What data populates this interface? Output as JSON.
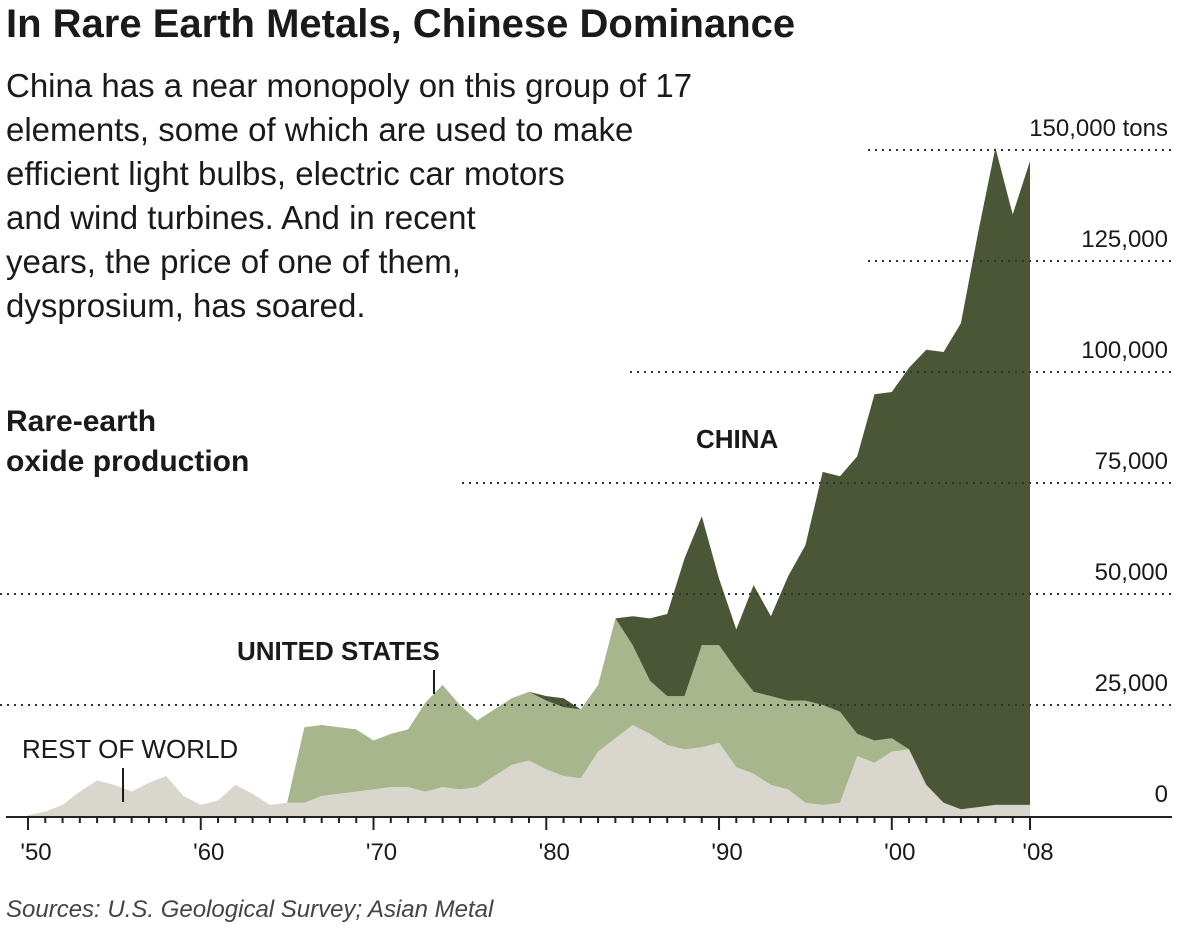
{
  "title": "In Rare Earth Metals, Chinese Dominance",
  "description_lines": [
    "China has a near monopoly on this group of 17",
    "elements, some of which are used to make",
    "efficient light bulbs, electric car motors",
    "and wind turbines. And in recent",
    "years, the price of one of them,",
    "dysprosium, has soared."
  ],
  "subtitle_lines": [
    "Rare-earth",
    "oxide production"
  ],
  "source": "Sources: U.S. Geological Survey; Asian Metal",
  "colors": {
    "china": "#4b5637",
    "united_states": "#a8b68d",
    "rest_of_world": "#d9d7cd"
  },
  "chart_data": {
    "type": "area",
    "stacked": true,
    "x": [
      1950,
      1951,
      1952,
      1953,
      1954,
      1955,
      1956,
      1957,
      1958,
      1959,
      1960,
      1961,
      1962,
      1963,
      1964,
      1965,
      1966,
      1967,
      1968,
      1969,
      1970,
      1971,
      1972,
      1973,
      1974,
      1975,
      1976,
      1977,
      1978,
      1979,
      1980,
      1981,
      1982,
      1983,
      1984,
      1985,
      1986,
      1987,
      1988,
      1989,
      1990,
      1991,
      1992,
      1993,
      1994,
      1995,
      1996,
      1997,
      1998,
      1999,
      2000,
      2001,
      2002,
      2003,
      2004,
      2005,
      2006,
      2007,
      2008
    ],
    "series": [
      {
        "name": "REST OF WORLD",
        "values": [
          200,
          1000,
          2500,
          5500,
          8000,
          7000,
          5500,
          7500,
          9000,
          4500,
          2500,
          3500,
          7000,
          5000,
          2500,
          3000,
          3000,
          4500,
          5000,
          5500,
          6000,
          6500,
          6500,
          5500,
          6500,
          6000,
          6500,
          9000,
          11500,
          12500,
          10500,
          9000,
          8500,
          14500,
          17500,
          20500,
          18500,
          16000,
          15000,
          15500,
          16500,
          11000,
          9500,
          7000,
          6000,
          3000,
          2500,
          3000,
          13500,
          12000,
          14500,
          15000,
          7000,
          3000,
          1500,
          2000,
          2500,
          2500,
          2500
        ]
      },
      {
        "name": "UNITED STATES",
        "values": [
          0,
          0,
          0,
          0,
          0,
          0,
          0,
          0,
          0,
          0,
          0,
          0,
          0,
          0,
          0,
          0,
          17000,
          16000,
          15000,
          14000,
          11000,
          12000,
          13000,
          20000,
          23000,
          19000,
          15000,
          15000,
          15000,
          15500,
          15500,
          15500,
          15500,
          15000,
          27000,
          18000,
          12000,
          11000,
          12000,
          23000,
          22000,
          22000,
          18500,
          20000,
          20000,
          23000,
          22500,
          20500,
          5000,
          5000,
          3000,
          0,
          0,
          0,
          0,
          0,
          0,
          0,
          0
        ]
      },
      {
        "name": "CHINA",
        "values": [
          0,
          0,
          0,
          0,
          0,
          0,
          0,
          0,
          0,
          0,
          0,
          0,
          0,
          0,
          0,
          0,
          0,
          0,
          0,
          0,
          0,
          0,
          0,
          0,
          0,
          0,
          0,
          0,
          0,
          0,
          1000,
          2000,
          0,
          0,
          0,
          6500,
          14000,
          18500,
          31000,
          29000,
          15000,
          9000,
          24000,
          18000,
          28000,
          35000,
          52500,
          53000,
          62500,
          78000,
          78000,
          86000,
          98000,
          101500,
          109500,
          129500,
          148000,
          133000,
          145000
        ]
      }
    ],
    "ytick_labels": [
      "150,000 tons",
      "125,000",
      "100,000",
      "75,000",
      "50,000",
      "25,000",
      "0"
    ],
    "yticks": [
      150000,
      125000,
      100000,
      75000,
      50000,
      25000,
      0
    ],
    "xtick_labels": [
      "'50",
      "'60",
      "'70",
      "'80",
      "'90",
      "'00",
      "'08"
    ],
    "xticks": [
      1950,
      1960,
      1970,
      1980,
      1990,
      2000,
      2008
    ],
    "ylim": [
      0,
      150000
    ],
    "annotations": [
      {
        "text": "CHINA",
        "series": "CHINA"
      },
      {
        "text": "UNITED STATES",
        "series": "UNITED STATES",
        "pointer_year": 1973.5
      },
      {
        "text": "REST OF WORLD",
        "series": "REST OF WORLD",
        "pointer_year": 1955.5
      }
    ],
    "grid": "dotted horizontal"
  }
}
